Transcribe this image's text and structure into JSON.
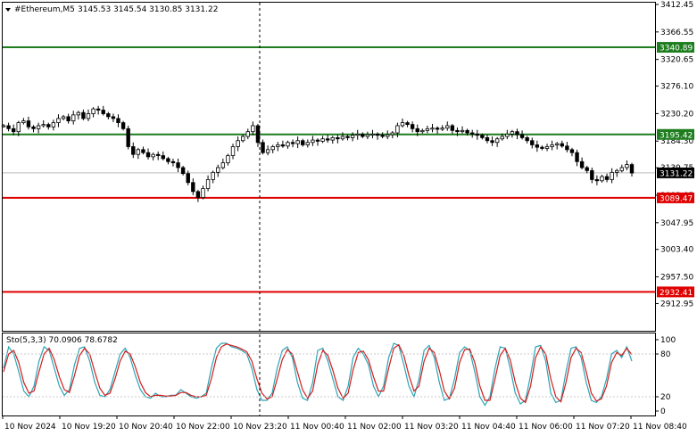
{
  "header": {
    "symbol": "#Ethereum,M5",
    "ohlc": "3145.53 3145.54 3130.85 3131.22"
  },
  "chart_data": [
    {
      "type": "candlestick",
      "symbol": "#Ethereum",
      "timeframe": "M5",
      "open": 3145.53,
      "high": 3145.54,
      "low": 3130.85,
      "close": 3131.22,
      "y_ticks": [
        "3412.45",
        "3366.55",
        "3320.65",
        "3276.10",
        "3230.20",
        "3184.30",
        "3139.75",
        "3093.85",
        "3047.95",
        "3003.40",
        "2957.50",
        "2912.95"
      ],
      "y_tick_values": [
        3412.45,
        3366.55,
        3320.65,
        3276.1,
        3230.2,
        3184.3,
        3139.75,
        3093.85,
        3047.95,
        3003.4,
        2957.5,
        2912.95
      ],
      "ylim": [
        2912.95,
        3412.45
      ],
      "x_ticks": [
        "10 Nov 2024",
        "10 Nov 19:20",
        "10 Nov 20:40",
        "10 Nov 22:00",
        "10 Nov 23:20",
        "11 Nov 00:40",
        "11 Nov 02:00",
        "11 Nov 03:20",
        "11 Nov 04:40",
        "11 Nov 06:00",
        "11 Nov 07:20",
        "11 Nov 08:40"
      ],
      "current_price_label": "3131.22",
      "levels": [
        {
          "value": 3340.89,
          "label": "3340.89",
          "color": "#1e7d1e"
        },
        {
          "value": 3195.42,
          "label": "3195.42",
          "color": "#1e7d1e"
        },
        {
          "value": 3089.47,
          "label": "3089.47",
          "color": "#e00000"
        },
        {
          "value": 2932.41,
          "label": "2932.41",
          "color": "#e00000"
        }
      ],
      "closes": [
        3210,
        3205,
        3200,
        3215,
        3218,
        3208,
        3205,
        3210,
        3212,
        3208,
        3215,
        3222,
        3225,
        3218,
        3228,
        3232,
        3222,
        3230,
        3238,
        3236,
        3230,
        3225,
        3222,
        3215,
        3205,
        3175,
        3162,
        3170,
        3165,
        3158,
        3162,
        3160,
        3155,
        3150,
        3148,
        3140,
        3130,
        3115,
        3100,
        3090,
        3105,
        3120,
        3132,
        3140,
        3148,
        3160,
        3175,
        3185,
        3192,
        3200,
        3210,
        3182,
        3165,
        3170,
        3175,
        3178,
        3176,
        3182,
        3180,
        3185,
        3178,
        3182,
        3186,
        3184,
        3188,
        3186,
        3190,
        3188,
        3192,
        3190,
        3194,
        3196,
        3192,
        3195,
        3196,
        3194,
        3192,
        3195,
        3198,
        3210,
        3215,
        3212,
        3205,
        3200,
        3202,
        3205,
        3206,
        3204,
        3206,
        3210,
        3202,
        3200,
        3202,
        3198,
        3196,
        3194,
        3190,
        3185,
        3182,
        3188,
        3192,
        3196,
        3200,
        3195,
        3190,
        3185,
        3178,
        3174,
        3172,
        3175,
        3178,
        3180,
        3176,
        3170,
        3165,
        3150,
        3140,
        3135,
        3120,
        3118,
        3125,
        3120,
        3132,
        3135,
        3140,
        3145,
        3131
      ]
    },
    {
      "type": "line",
      "title": "Sto(5,3,3) 70.0906 78.6782",
      "y_ticks": [
        "100",
        "80",
        "20",
        "0"
      ],
      "ylim": [
        0,
        100
      ],
      "series": [
        {
          "color": "#2aa5b5",
          "values": [
            60,
            90,
            80,
            55,
            28,
            20,
            35,
            70,
            90,
            85,
            60,
            35,
            22,
            30,
            65,
            88,
            90,
            70,
            40,
            22,
            20,
            30,
            55,
            80,
            88,
            75,
            50,
            30,
            20,
            18,
            25,
            20,
            20,
            22,
            22,
            30,
            25,
            20,
            18,
            20,
            25,
            60,
            88,
            95,
            95,
            90,
            88,
            85,
            80,
            60,
            30,
            15,
            15,
            25,
            60,
            85,
            90,
            75,
            40,
            18,
            15,
            40,
            85,
            88,
            70,
            45,
            20,
            15,
            35,
            75,
            88,
            80,
            65,
            35,
            20,
            35,
            75,
            95,
            92,
            65,
            35,
            20,
            45,
            85,
            92,
            75,
            40,
            15,
            18,
            45,
            82,
            90,
            85,
            55,
            20,
            8,
            20,
            60,
            90,
            88,
            60,
            25,
            10,
            15,
            50,
            90,
            92,
            70,
            25,
            12,
            15,
            55,
            88,
            90,
            75,
            40,
            15,
            12,
            20,
            45,
            80,
            85,
            75,
            90,
            70
          ]
        },
        {
          "color": "#d41c1c",
          "values": [
            55,
            80,
            85,
            68,
            40,
            25,
            28,
            55,
            80,
            88,
            72,
            48,
            30,
            26,
            50,
            78,
            88,
            80,
            55,
            32,
            22,
            25,
            45,
            70,
            84,
            80,
            62,
            40,
            26,
            20,
            22,
            22,
            21,
            21,
            22,
            26,
            26,
            22,
            20,
            20,
            22,
            45,
            75,
            90,
            94,
            92,
            90,
            87,
            83,
            70,
            45,
            25,
            17,
            20,
            45,
            72,
            86,
            80,
            55,
            30,
            18,
            28,
            65,
            85,
            78,
            57,
            32,
            18,
            25,
            58,
            82,
            84,
            72,
            48,
            28,
            28,
            60,
            88,
            93,
            78,
            50,
            28,
            35,
            70,
            88,
            82,
            57,
            28,
            17,
            32,
            68,
            86,
            87,
            68,
            35,
            15,
            15,
            45,
            78,
            88,
            72,
            40,
            18,
            12,
            35,
            75,
            90,
            80,
            45,
            20,
            13,
            40,
            75,
            88,
            82,
            55,
            25,
            14,
            17,
            35,
            68,
            82,
            78,
            88,
            79
          ]
        }
      ]
    }
  ]
}
